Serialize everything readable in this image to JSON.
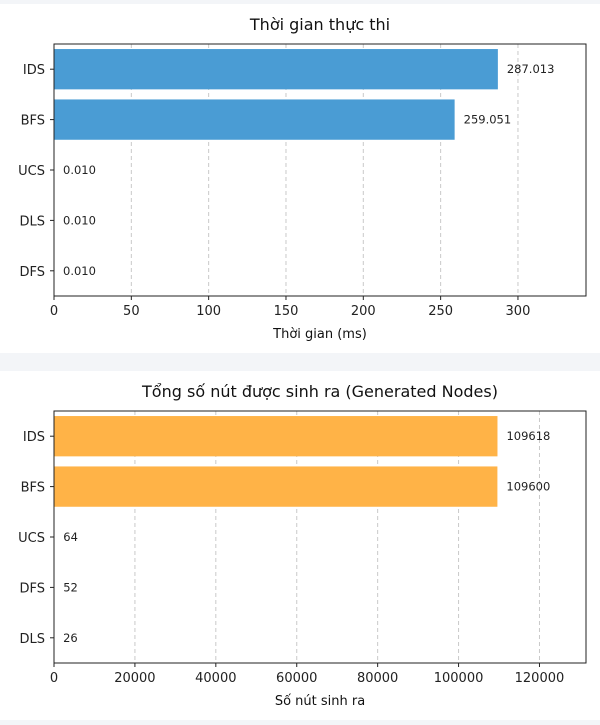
{
  "chart_data": [
    {
      "type": "bar",
      "orientation": "horizontal",
      "title": "Thời gian thực thi",
      "xlabel": "Thời gian (ms)",
      "ylabel": "",
      "categories": [
        "IDS",
        "BFS",
        "UCS",
        "DLS",
        "DFS"
      ],
      "values": [
        287.013,
        259.051,
        0.01,
        0.01,
        0.01
      ],
      "value_labels": [
        "287.013",
        "259.051",
        "0.010",
        "0.010",
        "0.010"
      ],
      "xlim": [
        0,
        344
      ],
      "xticks": [
        0,
        50,
        100,
        150,
        200,
        250,
        300
      ],
      "grid": "x, dashed",
      "color": "#4a9cd4"
    },
    {
      "type": "bar",
      "orientation": "horizontal",
      "title": "Tổng số nút được sinh ra (Generated Nodes)",
      "xlabel": "Số nút sinh ra",
      "ylabel": "",
      "categories": [
        "IDS",
        "BFS",
        "UCS",
        "DFS",
        "DLS"
      ],
      "values": [
        109618,
        109600,
        64,
        52,
        26
      ],
      "value_labels": [
        "109618",
        "109600",
        "64",
        "52",
        "26"
      ],
      "xlim": [
        0,
        131500
      ],
      "xticks": [
        0,
        20000,
        40000,
        60000,
        80000,
        100000,
        120000
      ],
      "grid": "x, dashed",
      "color": "#ffb347"
    }
  ]
}
